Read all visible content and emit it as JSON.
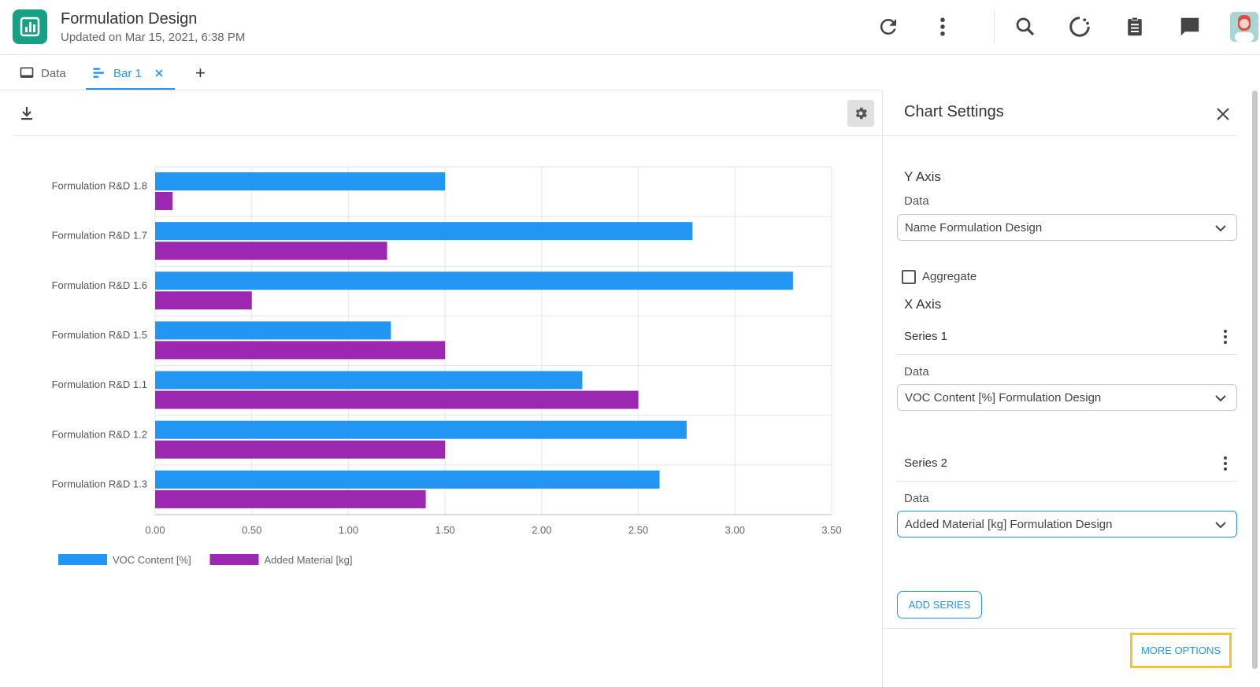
{
  "header": {
    "title": "Formulation Design",
    "subtitle": "Updated on Mar 15, 2021, 6:38 PM",
    "icons": [
      "app-logo-icon",
      "refresh-icon",
      "more-vert-icon",
      "search-icon",
      "loading-icon",
      "clipboard-icon",
      "chat-icon",
      "user-avatar"
    ]
  },
  "tabs": [
    {
      "label": "Data",
      "icon": "monitor-icon",
      "active": false
    },
    {
      "label": "Bar 1",
      "icon": "bar-chart-icon",
      "active": true,
      "closable": true
    }
  ],
  "add_tab_label": "+",
  "chart_data": {
    "type": "bar",
    "orientation": "horizontal",
    "categories": [
      "Formulation R&D 1.8",
      "Formulation R&D 1.7",
      "Formulation R&D 1.6",
      "Formulation R&D 1.5",
      "Formulation R&D 1.1",
      "Formulation R&D 1.2",
      "Formulation R&D 1.3"
    ],
    "series": [
      {
        "name": "VOC Content [%]",
        "color": "#2196f3",
        "values": [
          1.5,
          2.78,
          3.3,
          1.22,
          2.21,
          2.75,
          2.61
        ]
      },
      {
        "name": "Added Material [kg]",
        "color": "#9c27b0",
        "values": [
          0.09,
          1.2,
          0.5,
          1.5,
          2.5,
          1.5,
          1.4
        ]
      }
    ],
    "xlim": [
      0,
      3.5
    ],
    "xticks": [
      "0.00",
      "0.50",
      "1.00",
      "1.50",
      "2.00",
      "2.50",
      "3.00",
      "3.50"
    ],
    "grid": true,
    "legend_position": "bottom-left"
  },
  "panel": {
    "title": "Chart Settings",
    "y_axis": {
      "heading": "Y Axis",
      "data_label": "Data",
      "data_value": "Name Formulation Design",
      "aggregate_label": "Aggregate",
      "aggregate_checked": false
    },
    "x_axis": {
      "heading": "X Axis",
      "series": [
        {
          "label": "Series 1",
          "data_label": "Data",
          "data_value": "VOC Content [%] Formulation Design"
        },
        {
          "label": "Series 2",
          "data_label": "Data",
          "data_value": "Added Material [kg] Formulation Design"
        }
      ]
    },
    "add_series_label": "ADD SERIES",
    "more_options_label": "MORE OPTIONS"
  }
}
